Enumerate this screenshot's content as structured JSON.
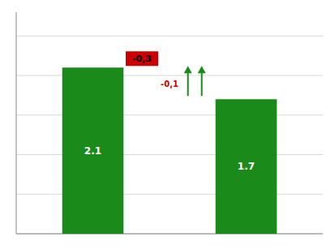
{
  "chart_data": {
    "type": "bar",
    "categories": [
      null,
      null
    ],
    "values": [
      2.1,
      1.7
    ],
    "color": "#1a8a1a",
    "data_labels": true,
    "annotations": [
      "-0,3",
      "-0,1"
    ],
    "ylim": [
      0,
      2.8
    ],
    "yticks": [
      0,
      0.5,
      1.0,
      1.5,
      2.0,
      2.5
    ],
    "grid": true,
    "tick_labels": false
  }
}
